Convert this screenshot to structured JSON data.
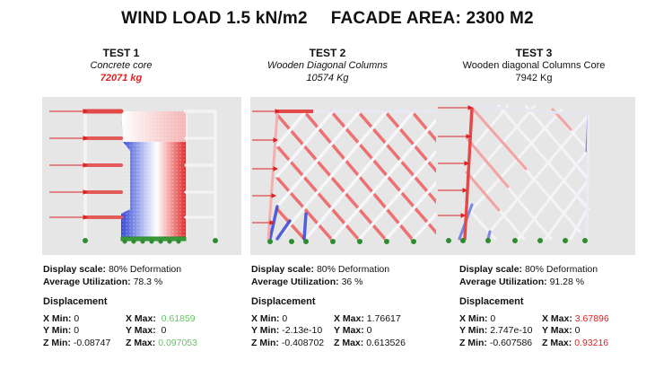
{
  "title": {
    "wind": "WIND LOAD 1.5 kN/m2",
    "facade": "FACADE AREA: 2300 M2"
  },
  "tests": [
    {
      "name": "TEST 1",
      "subtitle": "Concrete core",
      "weight": "72071 kg",
      "display_scale_label": "Display scale:",
      "display_scale": "80% Deformation",
      "avg_util_label": "Average Utilization:",
      "avg_util": "78.3 %",
      "displacement_label": "Displacement",
      "xmin_label": "X Min:",
      "xmin": "0",
      "xmax_label": "X Max:",
      "xmax": "0.61859",
      "ymin_label": "Y Min:",
      "ymin": "0",
      "ymax_label": "Y Max:",
      "ymax": "0",
      "zmin_label": "Z Min:",
      "zmin": "-0.08747",
      "zmax_label": "Z Max:",
      "zmax": "0.097053"
    },
    {
      "name": "TEST 2",
      "subtitle": "Wooden Diagonal Columns",
      "weight": "10574 Kg",
      "display_scale_label": "Display scale:",
      "display_scale": "80% Deformation",
      "avg_util_label": "Average Utilization:",
      "avg_util": "36 %",
      "displacement_label": "Displacement",
      "xmin_label": "X Min:",
      "xmin": "0",
      "xmax_label": "X Max:",
      "xmax": "1.76617",
      "ymin_label": "Y Min:",
      "ymin": "-2.13e-10",
      "ymax_label": "Y Max:",
      "ymax": "0",
      "zmin_label": "Z Min:",
      "zmin": "-0.408702",
      "zmax_label": "Z Max:",
      "zmax": "0.613526"
    },
    {
      "name": "TEST 3",
      "subtitle": "Wooden diagonal Columns Core",
      "weight": "7942 Kg",
      "display_scale_label": "Display scale:",
      "display_scale": "80% Deformation",
      "avg_util_label": "Average Utilization:",
      "avg_util": "91.28 %",
      "displacement_label": "Displacement",
      "xmin_label": "X Min:",
      "xmin": "0",
      "xmax_label": "X Max:",
      "xmax": "3.67896",
      "ymin_label": "Y Min:",
      "ymin": "2.747e-10",
      "ymax_label": "Y Max:",
      "ymax": "0",
      "zmin_label": "Z Min:",
      "zmin": "-0.607586",
      "zmax_label": "Z Max:",
      "zmax": "0.93216"
    }
  ],
  "colors": {
    "tension": "#e53030",
    "compression": "#3848d8",
    "load_arrow": "#e02020",
    "support": "#2e8b2e",
    "highlight_green": "#62c462",
    "highlight_red": "#e02020"
  }
}
